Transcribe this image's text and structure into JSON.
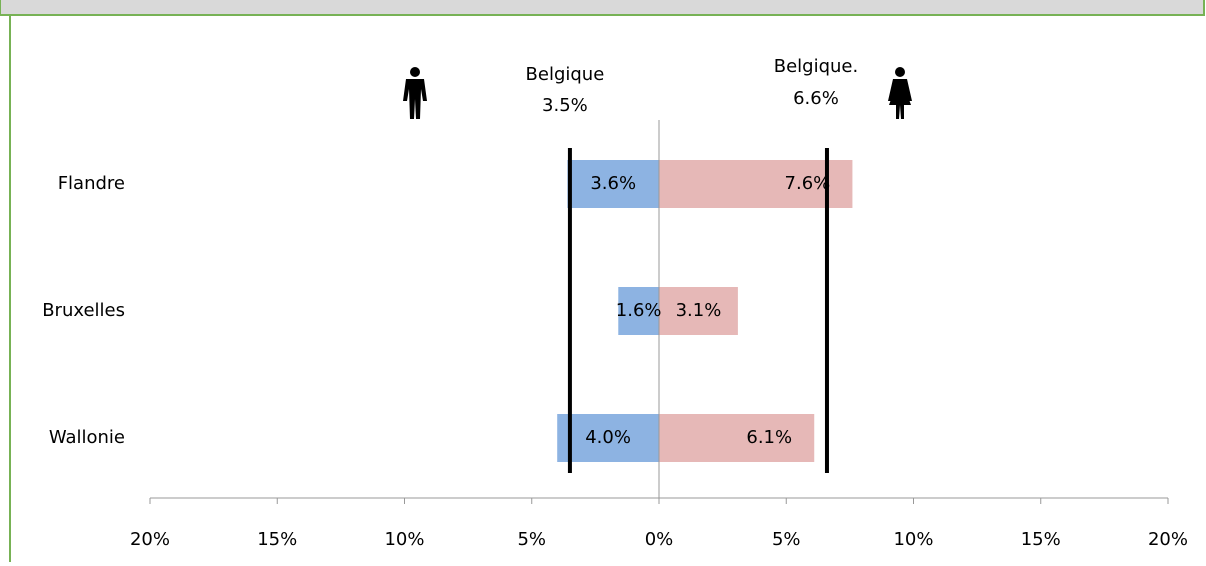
{
  "chart_data": {
    "type": "butterfly",
    "categories": [
      "Flandre",
      "Bruxelles",
      "Wallonie"
    ],
    "series": [
      {
        "name": "Hommes",
        "color": "#8db3e2",
        "values": [
          -3.6,
          -1.6,
          -4.0
        ],
        "value_labels": [
          "3.6%",
          "1.6%",
          "4.0%"
        ]
      },
      {
        "name": "Femmes",
        "color": "#e6b8b7",
        "values": [
          7.6,
          3.1,
          6.1
        ],
        "value_labels": [
          "7.6%",
          "3.1%",
          "6.1%"
        ]
      }
    ],
    "reference_lines": [
      {
        "value": -3.5,
        "label": "Belgique",
        "value_label": "3.5%"
      },
      {
        "value": 6.6,
        "label": "Belgique.",
        "value_label": "6.6%"
      }
    ],
    "xlim": [
      -20,
      20
    ],
    "xticks": [
      {
        "value": -20,
        "label": "20%"
      },
      {
        "value": -15,
        "label": "15%"
      },
      {
        "value": -10,
        "label": "10%"
      },
      {
        "value": -5,
        "label": "5%"
      },
      {
        "value": 0,
        "label": "0%"
      },
      {
        "value": 5,
        "label": "5%"
      },
      {
        "value": 10,
        "label": "10%"
      },
      {
        "value": 15,
        "label": "15%"
      },
      {
        "value": 20,
        "label": "20%"
      }
    ]
  }
}
